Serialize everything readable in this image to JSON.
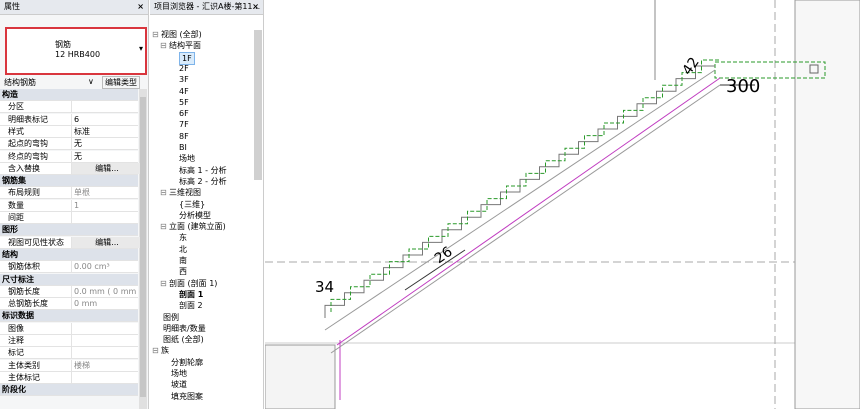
{
  "properties": {
    "title": "属性",
    "close": "×",
    "type_family": "钢筋",
    "type_name": "12 HRB400",
    "category": "结构钢筋",
    "edit_type": "编辑类型",
    "rows": [
      {
        "section": "构造"
      },
      {
        "label": "分区"
      },
      {
        "label": "明细表标记",
        "value": "6"
      },
      {
        "label": "样式",
        "value": "标准"
      },
      {
        "label": "起点的弯钩",
        "value": "无"
      },
      {
        "label": "终点的弯钩",
        "value": "无"
      },
      {
        "label": "含入替换",
        "value": "编辑...",
        "button": true
      },
      {
        "section": "钢筋集"
      },
      {
        "label": "布局规则",
        "value": "单根",
        "readonly": true
      },
      {
        "label": "数量",
        "value": "1",
        "readonly": true
      },
      {
        "label": "间距",
        "readonly": true
      },
      {
        "section": "图形"
      },
      {
        "label": "视图可见性状态",
        "value": "编辑...",
        "button": true
      },
      {
        "section": "结构"
      },
      {
        "label": "钢筋体积",
        "value": "0.00 cm³",
        "readonly": true
      },
      {
        "section": "尺寸标注"
      },
      {
        "label": "钢筋长度",
        "value": "0.0 mm ( 0 mm )",
        "readonly": true
      },
      {
        "label": "总钢筋长度",
        "value": "0 mm",
        "readonly": true
      },
      {
        "section": "标识数据"
      },
      {
        "label": "图像"
      },
      {
        "label": "注释"
      },
      {
        "label": "标记"
      },
      {
        "label": "主体类别",
        "value": "楼梯",
        "readonly": true
      },
      {
        "label": "主体标记",
        "readonly": true
      },
      {
        "section": "阶段化"
      }
    ]
  },
  "browser": {
    "title": "项目浏览器 - 汇识A楼-第11...",
    "close": "×",
    "tree": [
      {
        "label": "视图 (全部)",
        "children": [
          {
            "label": "结构平面",
            "children": [
              {
                "label": "1F",
                "selected": true
              },
              {
                "label": "2F"
              },
              {
                "label": "3F"
              },
              {
                "label": "4F"
              },
              {
                "label": "5F"
              },
              {
                "label": "6F"
              },
              {
                "label": "7F"
              },
              {
                "label": "8F"
              },
              {
                "label": "BI"
              },
              {
                "label": "场地"
              },
              {
                "label": "标高 1 - 分析"
              },
              {
                "label": "标高 2 - 分析"
              }
            ]
          },
          {
            "label": "三维视图",
            "children": [
              {
                "label": "{三维}"
              },
              {
                "label": "分析模型"
              }
            ]
          },
          {
            "label": "立面 (建筑立面)",
            "children": [
              {
                "label": "东"
              },
              {
                "label": "北"
              },
              {
                "label": "南"
              },
              {
                "label": "西"
              }
            ]
          },
          {
            "label": "剖面 (剖面 1)",
            "children": [
              {
                "label": "剖面 1",
                "current": true
              },
              {
                "label": "剖面 2"
              }
            ]
          }
        ]
      },
      {
        "label": "图例"
      },
      {
        "label": "明细表/数量"
      },
      {
        "label": "图纸 (全部)"
      },
      {
        "label": "族",
        "children": [
          {
            "label": "分割轮廓"
          },
          {
            "label": "场地"
          },
          {
            "label": "坡道"
          },
          {
            "label": "填充图案"
          }
        ]
      }
    ]
  },
  "drawing": {
    "dims": [
      "42",
      "300",
      "26",
      "34"
    ]
  }
}
